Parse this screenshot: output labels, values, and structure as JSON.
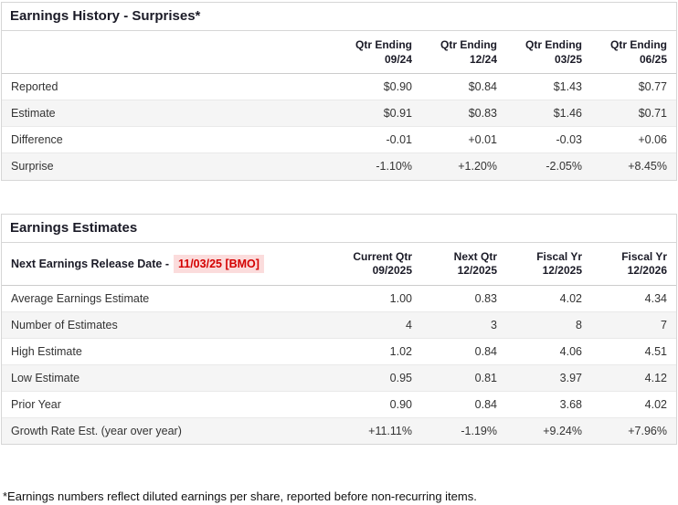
{
  "colors": {
    "positive": "#0d8673",
    "negative": "#c0334d",
    "date_red": "#d40000",
    "date_highlight_bg": "#fbdcdc",
    "alt_row_bg": "#f5f5f5"
  },
  "earnings_history": {
    "title": "Earnings History - Surprises*",
    "columns": [
      {
        "line1": "Qtr Ending",
        "line2": "09/24"
      },
      {
        "line1": "Qtr Ending",
        "line2": "12/24"
      },
      {
        "line1": "Qtr Ending",
        "line2": "03/25"
      },
      {
        "line1": "Qtr Ending",
        "line2": "06/25"
      }
    ],
    "rows": [
      {
        "label": "Reported",
        "values": [
          "$0.90",
          "$0.84",
          "$1.43",
          "$0.77"
        ],
        "tones": [
          "",
          "",
          "",
          ""
        ]
      },
      {
        "label": "Estimate",
        "values": [
          "$0.91",
          "$0.83",
          "$1.46",
          "$0.71"
        ],
        "tones": [
          "",
          "",
          "",
          ""
        ]
      },
      {
        "label": "Difference",
        "values": [
          "-0.01",
          "+0.01",
          "-0.03",
          "+0.06"
        ],
        "tones": [
          "neg",
          "pos",
          "neg",
          "pos"
        ]
      },
      {
        "label": "Surprise",
        "values": [
          "-1.10%",
          "+1.20%",
          "-2.05%",
          "+8.45%"
        ],
        "tones": [
          "neg",
          "pos",
          "neg",
          "pos"
        ]
      }
    ]
  },
  "earnings_estimates": {
    "title": "Earnings Estimates",
    "release_label": "Next Earnings Release Date -",
    "release_date": "11/03/25 [BMO]",
    "columns": [
      {
        "line1": "Current Qtr",
        "line2": "09/2025"
      },
      {
        "line1": "Next Qtr",
        "line2": "12/2025"
      },
      {
        "line1": "Fiscal Yr",
        "line2": "12/2025"
      },
      {
        "line1": "Fiscal Yr",
        "line2": "12/2026"
      }
    ],
    "rows": [
      {
        "label": "Average Earnings Estimate",
        "values": [
          "1.00",
          "0.83",
          "4.02",
          "4.34"
        ],
        "tones": [
          "",
          "",
          "",
          ""
        ]
      },
      {
        "label": "Number of Estimates",
        "values": [
          "4",
          "3",
          "8",
          "7"
        ],
        "tones": [
          "",
          "",
          "",
          ""
        ]
      },
      {
        "label": "High Estimate",
        "values": [
          "1.02",
          "0.84",
          "4.06",
          "4.51"
        ],
        "tones": [
          "",
          "",
          "",
          ""
        ]
      },
      {
        "label": "Low Estimate",
        "values": [
          "0.95",
          "0.81",
          "3.97",
          "4.12"
        ],
        "tones": [
          "",
          "",
          "",
          ""
        ]
      },
      {
        "label": "Prior Year",
        "values": [
          "0.90",
          "0.84",
          "3.68",
          "4.02"
        ],
        "tones": [
          "",
          "",
          "",
          ""
        ]
      },
      {
        "label": "Growth Rate Est. (year over year)",
        "values": [
          "+11.11%",
          "-1.19%",
          "+9.24%",
          "+7.96%"
        ],
        "tones": [
          "pos",
          "neg",
          "pos",
          "pos"
        ]
      }
    ]
  },
  "footnote": "*Earnings numbers reflect diluted earnings per share, reported before non-recurring items."
}
